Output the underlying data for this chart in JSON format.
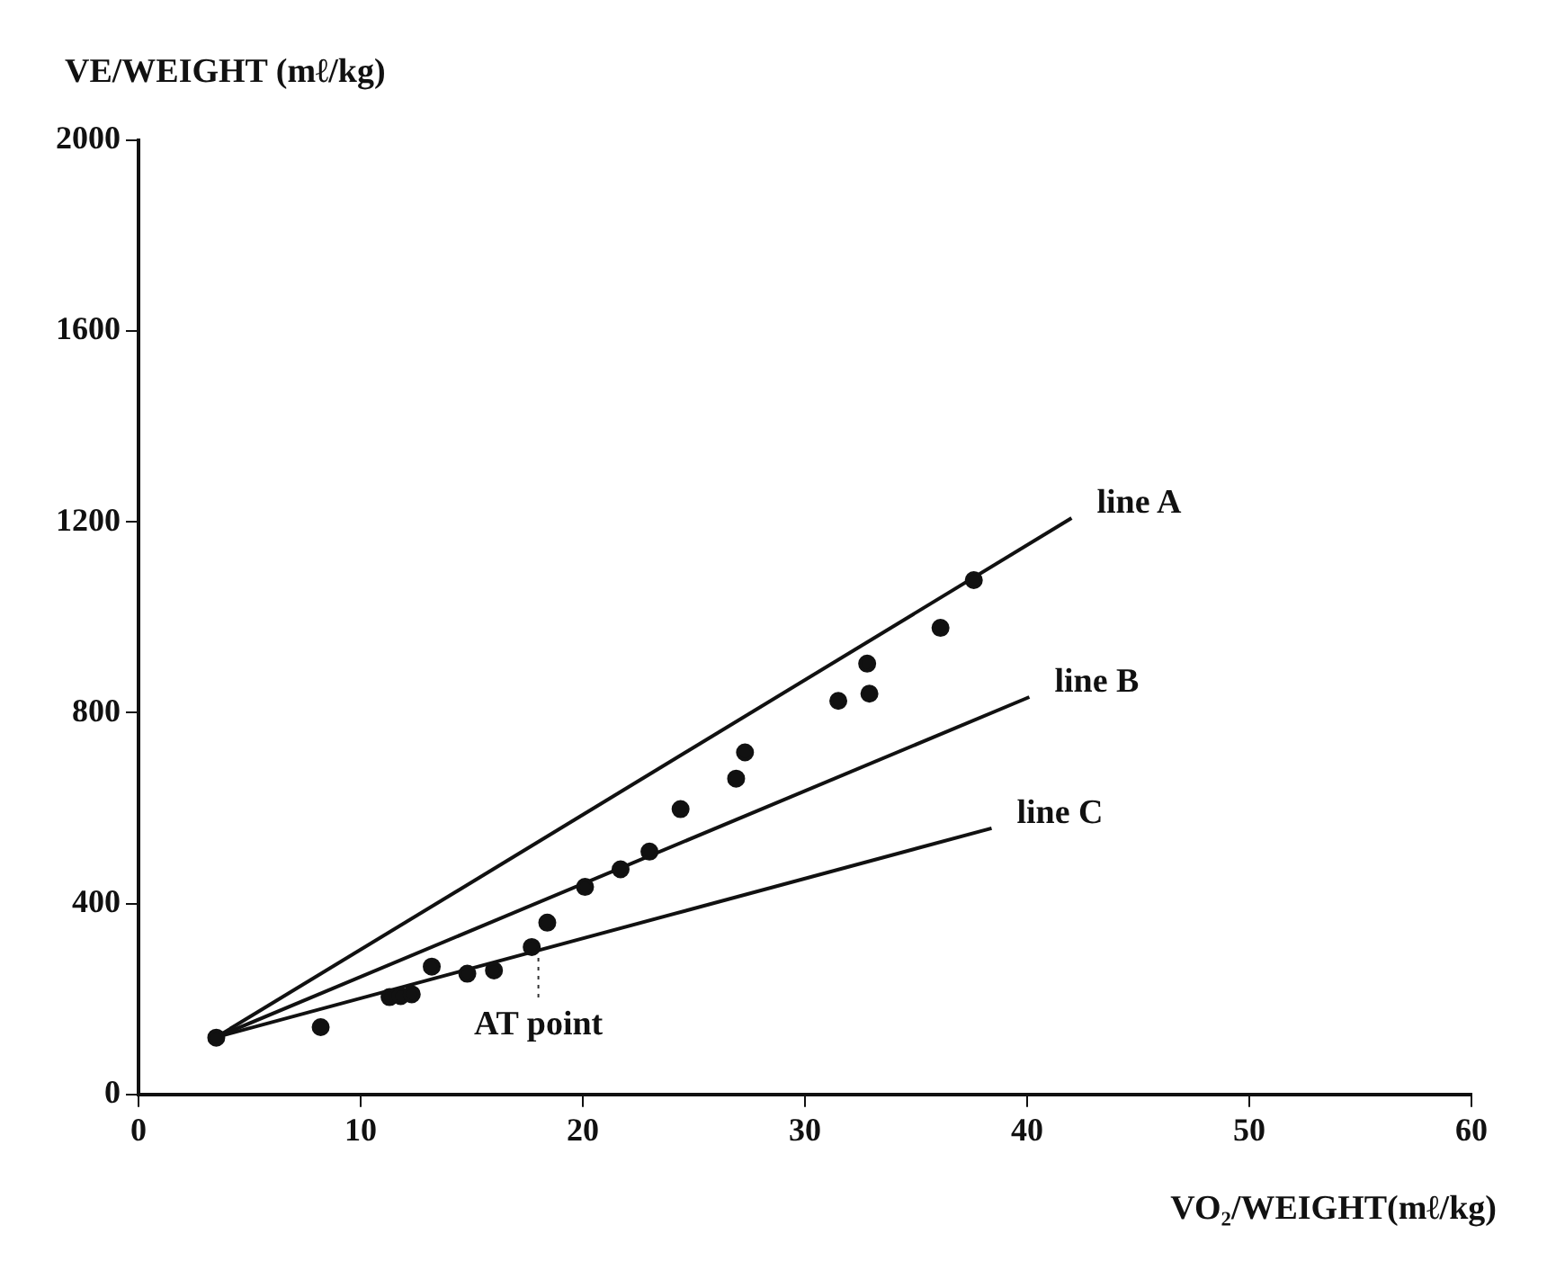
{
  "chart_data": {
    "type": "scatter",
    "xlabel": "VO₂/WEIGHT(mℓ/kg)",
    "ylabel": "VE/WEIGHT (mℓ/kg)",
    "xlim": [
      0,
      60
    ],
    "xticks": [
      0,
      10,
      20,
      30,
      40,
      50,
      60
    ],
    "ylim": [
      0,
      2000
    ],
    "yticks": [
      0,
      400,
      800,
      1200,
      1600,
      2000
    ],
    "grid": false,
    "legend": false,
    "marker": "circle",
    "series": [
      {
        "type": "scatter",
        "color": "#111111",
        "x": [
          3.5,
          8.2,
          11.3,
          11.8,
          12.3,
          13.2,
          14.8,
          16,
          17.7,
          18.4,
          20.1,
          21.7,
          23,
          24.4,
          26.9,
          27.3,
          31.5,
          32.8,
          32.9,
          36.1,
          37.6
        ],
        "values": [
          119,
          141,
          204,
          206,
          210,
          268,
          253,
          260,
          309,
          360,
          435,
          472,
          509,
          598,
          662,
          717,
          825,
          903,
          840,
          978,
          1078
        ]
      },
      {
        "type": "line",
        "name": "line A",
        "color": "#111111",
        "marker": "none",
        "line_style": "solid",
        "x": [
          3.5,
          42
        ],
        "values": [
          120,
          1208
        ]
      },
      {
        "type": "line",
        "name": "line B",
        "color": "#111111",
        "marker": "none",
        "line_style": "solid",
        "x": [
          3.5,
          40.1
        ],
        "values": [
          120,
          833
        ]
      },
      {
        "type": "line",
        "name": "line C",
        "color": "#111111",
        "marker": "none",
        "line_style": "solid",
        "x": [
          3.5,
          38.4
        ],
        "values": [
          120,
          558
        ]
      }
    ],
    "annotations": [
      {
        "text": "AT point",
        "x": 18,
        "y": 309
      }
    ]
  }
}
